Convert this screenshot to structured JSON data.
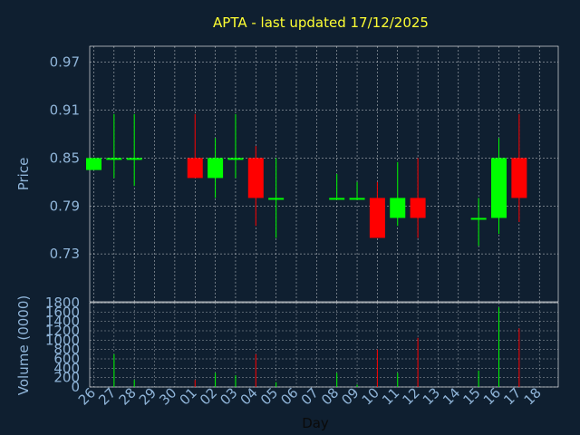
{
  "chart_data": {
    "type": "candlestick",
    "title": "APTA - last updated 17/12/2025",
    "xlabel": "Day",
    "price_ylabel": "Price",
    "volume_ylabel": "Volume (0000)",
    "price_yticks": [
      "0.97",
      "0.91",
      "0.85",
      "0.79",
      "0.73"
    ],
    "price_ylim": [
      0.67,
      0.99
    ],
    "volume_yticks": [
      "1800",
      "1600",
      "1400",
      "1200",
      "1000",
      "800",
      "600",
      "400",
      "200",
      "0"
    ],
    "volume_ylim": [
      0,
      1800
    ],
    "colors": {
      "up": "#00ff00",
      "down": "#ff0000",
      "title": "#ffff33",
      "axis_text": "#8fb4d8",
      "background": "#0f1f30"
    },
    "days": [
      "26",
      "27",
      "28",
      "29",
      "30",
      "01",
      "02",
      "03",
      "04",
      "05",
      "06",
      "07",
      "08",
      "09",
      "10",
      "11",
      "12",
      "13",
      "14",
      "15",
      "16",
      "17",
      "18"
    ],
    "candles": [
      {
        "day": "26",
        "open": 0.835,
        "high": 0.85,
        "low": 0.835,
        "close": 0.85,
        "volume": 0
      },
      {
        "day": "27",
        "open": 0.85,
        "high": 0.905,
        "low": 0.825,
        "close": 0.85,
        "volume": 700
      },
      {
        "day": "28",
        "open": 0.85,
        "high": 0.905,
        "low": 0.815,
        "close": 0.85,
        "volume": 150
      },
      {
        "day": "01",
        "open": 0.85,
        "high": 0.905,
        "low": 0.825,
        "close": 0.825,
        "volume": 150
      },
      {
        "day": "02",
        "open": 0.825,
        "high": 0.875,
        "low": 0.8,
        "close": 0.85,
        "volume": 300
      },
      {
        "day": "03",
        "open": 0.85,
        "high": 0.905,
        "low": 0.825,
        "close": 0.85,
        "volume": 250
      },
      {
        "day": "04",
        "open": 0.85,
        "high": 0.865,
        "low": 0.765,
        "close": 0.8,
        "volume": 700
      },
      {
        "day": "05",
        "open": 0.8,
        "high": 0.85,
        "low": 0.75,
        "close": 0.8,
        "volume": 100
      },
      {
        "day": "08",
        "open": 0.8,
        "high": 0.83,
        "low": 0.8,
        "close": 0.8,
        "volume": 300
      },
      {
        "day": "09",
        "open": 0.8,
        "high": 0.82,
        "low": 0.8,
        "close": 0.8,
        "volume": 50
      },
      {
        "day": "10",
        "open": 0.8,
        "high": 0.82,
        "low": 0.75,
        "close": 0.75,
        "volume": 800
      },
      {
        "day": "11",
        "open": 0.775,
        "high": 0.845,
        "low": 0.765,
        "close": 0.8,
        "volume": 300
      },
      {
        "day": "12",
        "open": 0.8,
        "high": 0.85,
        "low": 0.75,
        "close": 0.775,
        "volume": 1050
      },
      {
        "day": "15",
        "open": 0.775,
        "high": 0.8,
        "low": 0.74,
        "close": 0.775,
        "volume": 350
      },
      {
        "day": "16",
        "open": 0.775,
        "high": 0.875,
        "low": 0.755,
        "close": 0.85,
        "volume": 1700
      },
      {
        "day": "17",
        "open": 0.85,
        "high": 0.905,
        "low": 0.77,
        "close": 0.8,
        "volume": 1250
      }
    ]
  }
}
